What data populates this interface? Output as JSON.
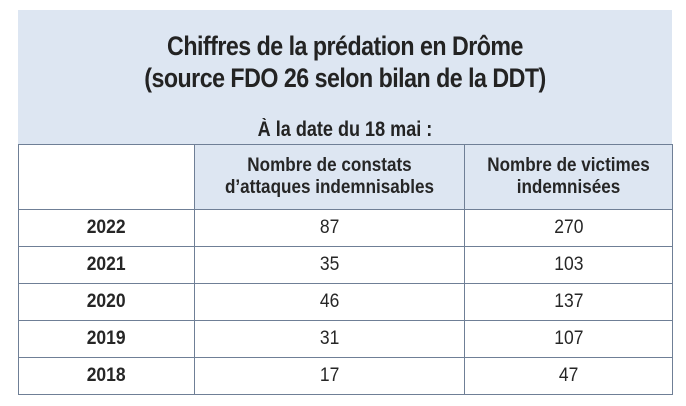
{
  "title_line1": "Chiffres de la prédation en Drôme",
  "title_line2": "(source FDO 26 selon bilan de la DDT)",
  "subtitle": "À la date du 18 mai :",
  "columns": [
    {
      "line1": "Nombre de constats",
      "line2": "d’attaques indemnisables"
    },
    {
      "line1": "Nombre de victimes",
      "line2": "indemnisées"
    }
  ],
  "rows": [
    {
      "year": "2022",
      "constats": "87",
      "victimes": "270"
    },
    {
      "year": "2021",
      "constats": "35",
      "victimes": "103"
    },
    {
      "year": "2020",
      "constats": "46",
      "victimes": "137"
    },
    {
      "year": "2019",
      "constats": "31",
      "victimes": "107"
    },
    {
      "year": "2018",
      "constats": "17",
      "victimes": "47"
    }
  ],
  "colors": {
    "header_bg": "#dde6f2",
    "border": "#6f7f96",
    "text": "#232323"
  }
}
